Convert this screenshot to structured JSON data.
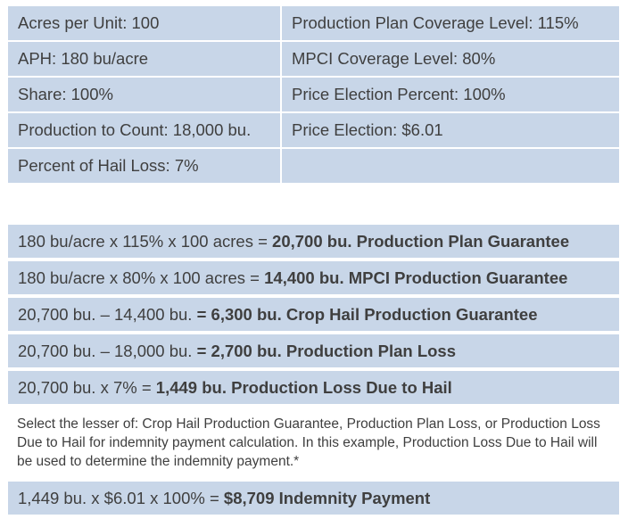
{
  "inputs": {
    "acres_per_unit": "Acres per Unit: 100",
    "production_plan_coverage_level": "Production Plan Coverage Level: 115%",
    "aph": "APH: 180 bu/acre",
    "mpci_coverage_level": "MPCI Coverage Level: 80%",
    "share": "Share: 100%",
    "price_election_percent": "Price Election Percent: 100%",
    "production_to_count": "Production to Count: 18,000 bu.",
    "price_election": "Price Election: $6.01",
    "percent_hail_loss": "Percent of Hail Loss: 7%",
    "empty": ""
  },
  "calculations": [
    {
      "formula": "180 bu/acre x 115% x 100 acres = ",
      "result": "20,700 bu. Production Plan Guarantee"
    },
    {
      "formula": "180 bu/acre x 80% x 100 acres = ",
      "result": "14,400 bu. MPCI Production Guarantee"
    },
    {
      "formula": "20,700 bu. – 14,400 bu. ",
      "result": "= 6,300 bu. Crop Hail Production Guarantee"
    },
    {
      "formula": "20,700 bu. – 18,000 bu. ",
      "result": "= 2,700 bu. Production Plan Loss"
    },
    {
      "formula": "20,700 bu. x 7% = ",
      "result": "1,449 bu. Production Loss Due to Hail"
    }
  ],
  "note": "Select the lesser of: Crop Hail Production Guarantee, Production Plan Loss, or Production Loss Due to Hail for indemnity payment calculation. In this example, Production Loss Due to Hail will be used to determine the indemnity payment.*",
  "indemnity": {
    "formula": "1,449 bu. x $6.01 x 100% = ",
    "result": "$8,709 Indemnity Payment"
  }
}
